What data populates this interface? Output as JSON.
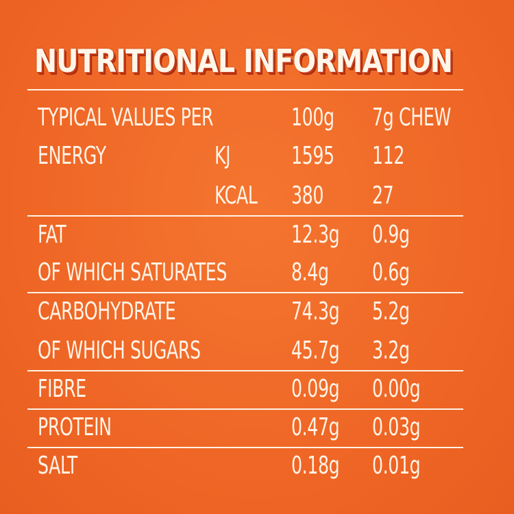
{
  "title": "NUTRITIONAL INFORMATION",
  "header": {
    "label": "TYPICAL VALUES PER",
    "col_100g": "100g",
    "col_chew": "7g CHEW"
  },
  "rows": [
    {
      "label": "ENERGY",
      "unit": "KJ",
      "per100": "1595",
      "perChew": "112"
    },
    {
      "label": "",
      "unit": "KCAL",
      "per100": "380",
      "perChew": "27"
    },
    {
      "label": "FAT",
      "unit": "",
      "per100": "12.3g",
      "perChew": "0.9g"
    },
    {
      "label": "OF WHICH SATURATES",
      "unit": "",
      "per100": "8.4g",
      "perChew": "0.6g"
    },
    {
      "label": "CARBOHYDRATE",
      "unit": "",
      "per100": "74.3g",
      "perChew": "5.2g"
    },
    {
      "label": "OF WHICH SUGARS",
      "unit": "",
      "per100": "45.7g",
      "perChew": "3.2g"
    },
    {
      "label": "FIBRE",
      "unit": "",
      "per100": "0.09g",
      "perChew": "0.00g"
    },
    {
      "label": "PROTEIN",
      "unit": "",
      "per100": "0.47g",
      "perChew": "0.03g"
    },
    {
      "label": "SALT",
      "unit": "",
      "per100": "0.18g",
      "perChew": "0.01g"
    }
  ],
  "colors": {
    "background": "#f06a26",
    "text": "#fff3e6",
    "title_shadow": "#c63c1a"
  }
}
